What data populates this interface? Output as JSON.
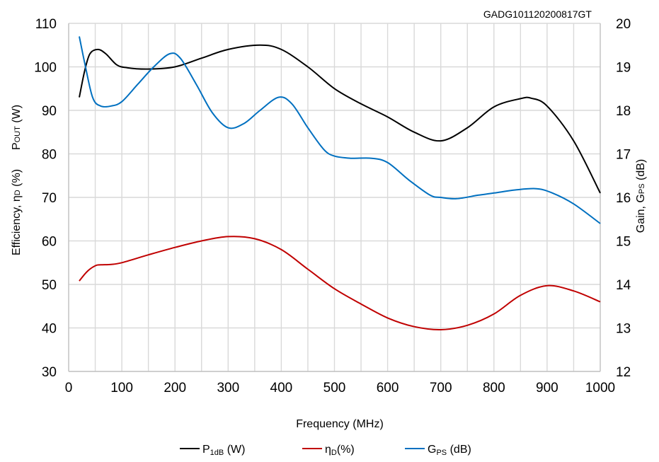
{
  "chart_data": {
    "type": "line",
    "code_label": "GADG101120200817GT",
    "xlabel": "Frequency (MHz)",
    "ylabel_left": {
      "line1_main": "P",
      "line1_sub": "OUT",
      "line1_rest": " (W)",
      "line2_main": "Efficiency, η",
      "line2_sub": "D",
      "line2_rest": " (%)"
    },
    "ylabel_right": {
      "main": "Gain, G",
      "sub": "PS",
      "rest": " (dB)"
    },
    "xlim": [
      0,
      1000
    ],
    "x_ticks": [
      "0",
      "100",
      "200",
      "300",
      "400",
      "500",
      "600",
      "700",
      "800",
      "900",
      "1000"
    ],
    "ylim_left": [
      30,
      110
    ],
    "y_ticks_left": [
      "30",
      "40",
      "50",
      "60",
      "70",
      "80",
      "90",
      "100",
      "110"
    ],
    "ylim_right": [
      12,
      20
    ],
    "y_ticks_right": [
      "12",
      "13",
      "14",
      "15",
      "16",
      "17",
      "18",
      "19",
      "20"
    ],
    "grid": true,
    "series": [
      {
        "name_main": "P",
        "name_sub": "1dB",
        "name_rest": " (W)",
        "axis": "left",
        "color": "#000000",
        "x": [
          20,
          30,
          40,
          55,
          70,
          90,
          110,
          150,
          200,
          250,
          300,
          360,
          400,
          450,
          500,
          550,
          600,
          650,
          700,
          750,
          800,
          850,
          870,
          900,
          950,
          1000
        ],
        "y": [
          93,
          99,
          103,
          104,
          103,
          100.5,
          99.8,
          99.5,
          100,
          102,
          104,
          105,
          104,
          100,
          95,
          91.5,
          88.5,
          85,
          83,
          86,
          90.8,
          92.7,
          92.8,
          91,
          83,
          71
        ]
      },
      {
        "name_main": "η",
        "name_sub": "D",
        "name_rest": "(%)",
        "axis": "left",
        "color": "#c00000",
        "x": [
          20,
          35,
          50,
          60,
          80,
          100,
          150,
          200,
          250,
          300,
          350,
          400,
          450,
          500,
          550,
          600,
          650,
          700,
          750,
          800,
          850,
          900,
          950,
          1000
        ],
        "y": [
          50.8,
          53,
          54.3,
          54.5,
          54.6,
          55,
          56.8,
          58.5,
          60,
          61,
          60.5,
          58,
          53.5,
          49,
          45.5,
          42.3,
          40.3,
          39.6,
          40.6,
          43.2,
          47.5,
          49.7,
          48.5,
          46
        ]
      },
      {
        "name_main": "G",
        "name_sub": "PS",
        "name_rest": " (dB)",
        "axis": "right",
        "color": "#0070c0",
        "x": [
          20,
          30,
          45,
          60,
          80,
          100,
          130,
          160,
          190,
          210,
          240,
          270,
          300,
          330,
          360,
          395,
          420,
          450,
          480,
          500,
          530,
          570,
          600,
          640,
          680,
          700,
          730,
          770,
          800,
          840,
          880,
          910,
          950,
          1000
        ],
        "y": [
          19.7,
          19.1,
          18.3,
          18.1,
          18.1,
          18.2,
          18.6,
          19.0,
          19.3,
          19.2,
          18.6,
          17.95,
          17.6,
          17.7,
          18.0,
          18.3,
          18.15,
          17.6,
          17.1,
          16.95,
          16.9,
          16.9,
          16.8,
          16.4,
          16.05,
          16.0,
          15.97,
          16.05,
          16.1,
          16.17,
          16.2,
          16.1,
          15.85,
          15.4
        ]
      }
    ],
    "legend_position": "bottom"
  }
}
